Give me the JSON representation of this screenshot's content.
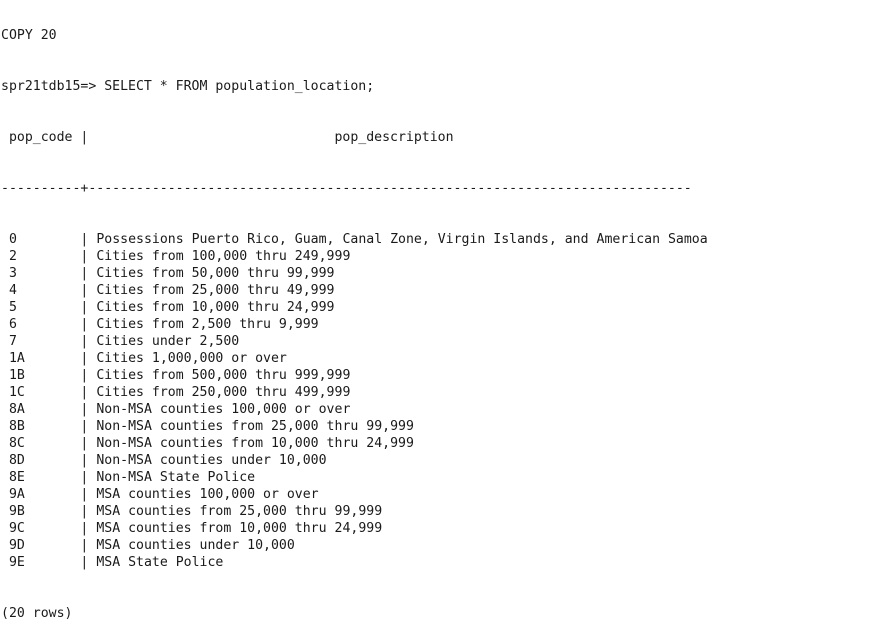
{
  "terminal": {
    "previous_output": "COPY 20",
    "prompt": "spr21tdb15=> ",
    "command": "SELECT * FROM population_location;",
    "columns": [
      "pop_code",
      "pop_description"
    ],
    "header_line": " pop_code |                               pop_description",
    "separator_line": "----------+----------------------------------------------------------------------------",
    "rows": [
      {
        "pop_code": "0",
        "pop_description": "Possessions Puerto Rico, Guam, Canal Zone, Virgin Islands, and American Samoa"
      },
      {
        "pop_code": "2",
        "pop_description": "Cities from 100,000 thru 249,999"
      },
      {
        "pop_code": "3",
        "pop_description": "Cities from 50,000 thru 99,999"
      },
      {
        "pop_code": "4",
        "pop_description": "Cities from 25,000 thru 49,999"
      },
      {
        "pop_code": "5",
        "pop_description": "Cities from 10,000 thru 24,999"
      },
      {
        "pop_code": "6",
        "pop_description": "Cities from 2,500 thru 9,999"
      },
      {
        "pop_code": "7",
        "pop_description": "Cities under 2,500"
      },
      {
        "pop_code": "1A",
        "pop_description": "Cities 1,000,000 or over"
      },
      {
        "pop_code": "1B",
        "pop_description": "Cities from 500,000 thru 999,999"
      },
      {
        "pop_code": "1C",
        "pop_description": "Cities from 250,000 thru 499,999"
      },
      {
        "pop_code": "8A",
        "pop_description": "Non-MSA counties 100,000 or over"
      },
      {
        "pop_code": "8B",
        "pop_description": "Non-MSA counties from 25,000 thru 99,999"
      },
      {
        "pop_code": "8C",
        "pop_description": "Non-MSA counties from 10,000 thru 24,999"
      },
      {
        "pop_code": "8D",
        "pop_description": "Non-MSA counties under 10,000"
      },
      {
        "pop_code": "8E",
        "pop_description": "Non-MSA State Police"
      },
      {
        "pop_code": "9A",
        "pop_description": "MSA counties 100,000 or over"
      },
      {
        "pop_code": "9B",
        "pop_description": "MSA counties from 25,000 thru 99,999"
      },
      {
        "pop_code": "9C",
        "pop_description": "MSA counties from 10,000 thru 24,999"
      },
      {
        "pop_code": "9D",
        "pop_description": "MSA counties under 10,000"
      },
      {
        "pop_code": "9E",
        "pop_description": "MSA State Police"
      }
    ],
    "row_count": "(20 rows)"
  }
}
